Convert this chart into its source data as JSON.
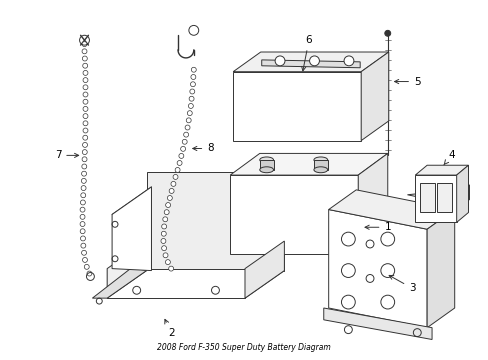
{
  "title": "2008 Ford F-350 Super Duty Battery Diagram",
  "bg_color": "#ffffff",
  "line_color": "#333333",
  "label_color": "#000000",
  "fig_width": 4.89,
  "fig_height": 3.6,
  "dpi": 100
}
